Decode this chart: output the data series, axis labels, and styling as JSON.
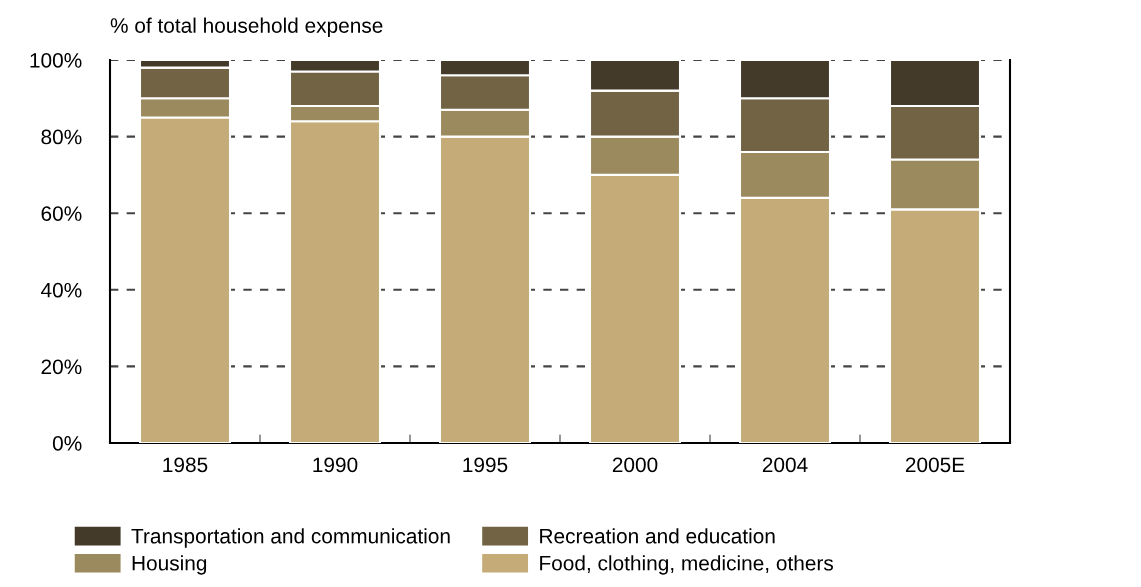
{
  "chart_data": {
    "type": "bar",
    "stacked": true,
    "ylabel": "% of total household expense",
    "categories": [
      "1985",
      "1990",
      "1995",
      "2000",
      "2004",
      "2005E"
    ],
    "series": [
      {
        "name": "Food, clothing, medicine, others",
        "color": "#c4ab77",
        "values": [
          85,
          84,
          80,
          70,
          64,
          61
        ]
      },
      {
        "name": "Housing",
        "color": "#9c8a5f",
        "values": [
          5,
          4,
          7,
          10,
          12,
          13
        ]
      },
      {
        "name": "Recreation and education",
        "color": "#716344",
        "values": [
          8,
          9,
          9,
          12,
          14,
          14
        ]
      },
      {
        "name": "Transportation and communication",
        "color": "#433a2a",
        "values": [
          2,
          3,
          4,
          8,
          10,
          12
        ]
      }
    ],
    "ylim": [
      0,
      100
    ],
    "yticks": [
      {
        "value": 0,
        "label": "0%"
      },
      {
        "value": 20,
        "label": "20%"
      },
      {
        "value": 40,
        "label": "40%"
      },
      {
        "value": 60,
        "label": "60%"
      },
      {
        "value": 80,
        "label": "80%"
      },
      {
        "value": 100,
        "label": "100%"
      }
    ],
    "grid": "y",
    "legend": "bottom"
  }
}
